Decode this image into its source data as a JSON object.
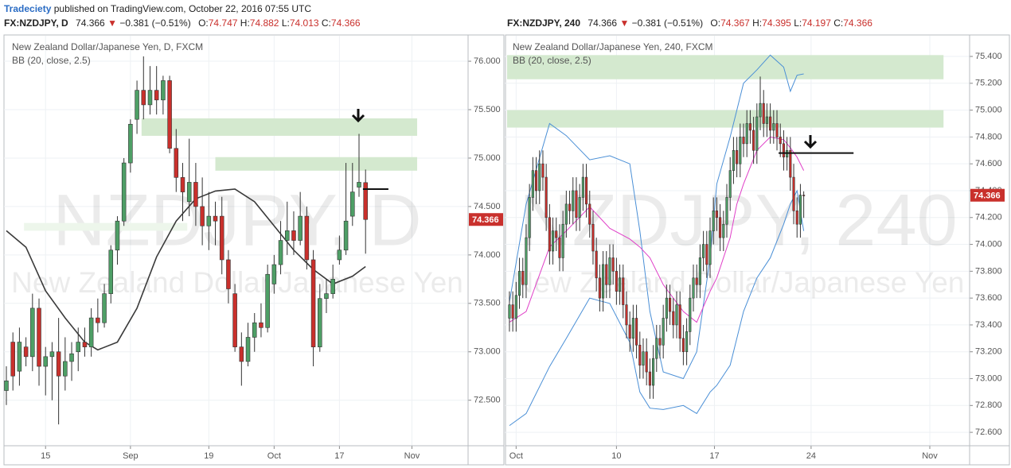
{
  "header": {
    "author": "Tradeciety",
    "published": "published on TradingView.com, October 22, 2016 07:55 UTC"
  },
  "chart_data": [
    {
      "type": "candlestick",
      "legend": {
        "symbol": "FX:NZDJPY, D",
        "last": "74.366",
        "change": "−0.381 (−0.51%)",
        "ohlc": [
          {
            "label": "O:",
            "value": "74.747"
          },
          {
            "label": "H:",
            "value": "74.882"
          },
          {
            "label": "L:",
            "value": "74.013"
          },
          {
            "label": "C:",
            "value": "74.366"
          }
        ]
      },
      "title": "New Zealand Dollar/Japanese Yen, D, FXCM",
      "indicator": "BB (20, close, 2.5)",
      "watermark": "NZDJPY, D",
      "watermark_subtitle": "New Zealand Dollar/Japanese Yen",
      "up_color": "#4e9f66",
      "down_color": "#c9302c",
      "grid": true,
      "xlim": [
        0,
        70.7
      ],
      "xticks": [
        {
          "value": 6,
          "label": "15"
        },
        {
          "value": 19,
          "label": "Sep"
        },
        {
          "value": 31,
          "label": "19"
        },
        {
          "value": 41,
          "label": "Oct"
        },
        {
          "value": 51,
          "label": "17"
        },
        {
          "value": 62.1,
          "label": "Nov"
        }
      ],
      "ylim": [
        72.03,
        76.263
      ],
      "yticks": [
        {
          "value": 72.5,
          "label": "72.500"
        },
        {
          "value": 73,
          "label": "73.000"
        },
        {
          "value": 73.5,
          "label": "73.500"
        },
        {
          "value": 74,
          "label": "74.000"
        },
        {
          "value": 74.5,
          "label": "74.500"
        },
        {
          "value": 75,
          "label": "75.000"
        },
        {
          "value": 75.5,
          "label": "75.500"
        },
        {
          "value": 76,
          "label": "76.000"
        }
      ],
      "open": [
        72.6,
        73.1,
        72.8,
        73.05,
        72.95,
        73.45,
        72.85,
        72.95,
        73.0,
        72.75,
        72.9,
        73.0,
        73.1,
        73.05,
        73.35,
        73.3,
        73.6,
        74.05,
        74.35,
        74.95,
        75.4,
        75.7,
        75.55,
        75.7,
        75.6,
        75.8,
        75.1,
        74.8,
        74.55,
        74.75,
        74.5,
        74.3,
        74.4,
        74.4,
        73.95,
        73.6,
        73.05,
        72.9,
        73.15,
        73.3,
        73.25,
        73.7,
        73.9,
        74.15,
        74.25,
        74.15,
        74.4,
        73.95,
        73.05,
        73.55,
        73.6,
        73.95,
        74.05,
        74.4,
        74.7,
        74.747
      ],
      "high": [
        72.85,
        73.2,
        73.25,
        73.15,
        73.6,
        73.55,
        73.05,
        73.1,
        73.35,
        73.15,
        73.1,
        73.25,
        73.25,
        73.45,
        73.55,
        73.7,
        74.1,
        74.4,
        75.0,
        75.4,
        75.8,
        76.05,
        75.95,
        75.95,
        75.85,
        75.85,
        75.3,
        74.95,
        75.2,
        74.95,
        74.8,
        74.65,
        74.55,
        74.6,
        74.05,
        73.7,
        73.2,
        73.3,
        73.4,
        73.5,
        73.9,
        74.0,
        74.35,
        74.55,
        74.45,
        74.65,
        74.5,
        74.05,
        73.7,
        73.75,
        73.9,
        74.2,
        74.95,
        74.95,
        75.25,
        74.882
      ],
      "low": [
        72.45,
        72.6,
        72.65,
        72.85,
        72.8,
        72.65,
        72.55,
        72.5,
        72.25,
        72.6,
        72.7,
        72.8,
        72.95,
        72.95,
        73.2,
        73.25,
        73.5,
        73.9,
        74.3,
        74.85,
        75.25,
        75.4,
        75.45,
        75.45,
        75.45,
        75.05,
        74.65,
        74.35,
        74.4,
        74.3,
        74.1,
        74.05,
        74.1,
        73.8,
        73.5,
        73.0,
        72.65,
        72.85,
        73.0,
        73.15,
        73.2,
        73.6,
        73.8,
        74.0,
        74.0,
        74.1,
        73.85,
        72.85,
        73.0,
        73.4,
        73.55,
        73.9,
        74.0,
        74.3,
        74.6,
        74.013
      ],
      "close": [
        72.7,
        72.75,
        73.1,
        72.95,
        73.45,
        72.85,
        72.95,
        73.0,
        72.75,
        72.9,
        72.98,
        73.1,
        73.05,
        73.35,
        73.3,
        73.6,
        74.05,
        74.35,
        74.95,
        75.35,
        75.7,
        75.55,
        75.7,
        75.6,
        75.8,
        75.1,
        74.8,
        74.65,
        74.75,
        74.5,
        74.3,
        74.4,
        74.35,
        73.95,
        73.65,
        73.05,
        72.9,
        73.15,
        73.3,
        73.25,
        73.8,
        73.9,
        74.15,
        74.25,
        74.15,
        74.4,
        73.95,
        73.05,
        73.55,
        73.6,
        73.75,
        74.05,
        74.35,
        74.65,
        74.75,
        74.366
      ],
      "lines": [
        {
          "color": "#3a3a3a",
          "x": [
            0,
            3,
            6,
            9,
            12,
            14,
            17,
            20,
            23,
            26,
            29,
            32,
            35,
            38,
            41,
            44,
            47,
            50,
            53,
            55
          ],
          "values": [
            74.25,
            74.08,
            73.63,
            73.35,
            73.1,
            73.02,
            73.1,
            73.45,
            73.98,
            74.35,
            74.58,
            74.66,
            74.68,
            74.55,
            74.3,
            74.05,
            73.85,
            73.7,
            73.78,
            73.88
          ]
        }
      ],
      "zones": [
        {
          "from": 74.25,
          "to": 74.33,
          "start": 2.7,
          "end": 27.7,
          "color": "#edf6eb"
        },
        {
          "from": 75.23,
          "to": 75.41,
          "start": 20.7,
          "end": 62.9,
          "color": "#d4e9cf"
        },
        {
          "from": 74.87,
          "to": 75.01,
          "start": 32,
          "end": 62.9,
          "color": "#d4e9cf"
        }
      ],
      "level": {
        "value": 74.68,
        "start": 54.6,
        "end": 58.5
      }
    },
    {
      "type": "candlestick",
      "legend": {
        "symbol": "FX:NZDJPY, 240",
        "last": "74.366",
        "change": "−0.381 (−0.51%)",
        "ohlc": [
          {
            "label": "O:",
            "value": "74.367"
          },
          {
            "label": "H:",
            "value": "74.395"
          },
          {
            "label": "L:",
            "value": "74.197"
          },
          {
            "label": "C:",
            "value": "74.366"
          }
        ]
      },
      "title": "New Zealand Dollar/Japanese Yen, 240, FXCM",
      "indicator": "BB (20, close, 2.5)",
      "watermark": "NZDJPY, 240",
      "watermark_subtitle": "New Zealand Dollar/Japanese Yen",
      "up_color": "#4e9f66",
      "down_color": "#c9302c",
      "grid": true,
      "xlim": [
        -0.7,
        137.6
      ],
      "xticks": [
        {
          "value": 2,
          "label": "Oct"
        },
        {
          "value": 32,
          "label": "10"
        },
        {
          "value": 61.3,
          "label": "17"
        },
        {
          "value": 90.2,
          "label": "24"
        },
        {
          "value": 125.7,
          "label": "Nov"
        }
      ],
      "ylim": [
        72.5,
        75.554
      ],
      "yticks": [
        {
          "value": 72.6,
          "label": "72.600"
        },
        {
          "value": 72.8,
          "label": "72.800"
        },
        {
          "value": 73,
          "label": "73.000"
        },
        {
          "value": 73.2,
          "label": "73.200"
        },
        {
          "value": 73.4,
          "label": "73.400"
        },
        {
          "value": 73.6,
          "label": "73.600"
        },
        {
          "value": 73.8,
          "label": "73.800"
        },
        {
          "value": 74,
          "label": "74.000"
        },
        {
          "value": 74.2,
          "label": "74.200"
        },
        {
          "value": 74.4,
          "label": "74.400"
        },
        {
          "value": 74.6,
          "label": "74.600"
        },
        {
          "value": 74.8,
          "label": "74.800"
        },
        {
          "value": 75,
          "label": "75.000"
        },
        {
          "value": 75.2,
          "label": "75.200"
        },
        {
          "value": 75.4,
          "label": "75.400"
        }
      ],
      "open": [
        73.45,
        73.55,
        73.45,
        73.62,
        73.8,
        73.7,
        74.05,
        74.35,
        74.55,
        74.4,
        74.6,
        74.5,
        74.2,
        73.95,
        74.1,
        74.05,
        73.9,
        74.15,
        74.3,
        74.25,
        74.4,
        74.2,
        74.35,
        74.5,
        74.3,
        74.15,
        73.95,
        73.75,
        73.6,
        73.85,
        73.7,
        73.9,
        73.8,
        73.65,
        73.75,
        73.55,
        73.4,
        73.3,
        73.45,
        73.25,
        73.1,
        73.2,
        73.05,
        72.95,
        73.15,
        73.3,
        73.25,
        73.45,
        73.6,
        73.5,
        73.4,
        73.55,
        73.3,
        73.2,
        73.35,
        73.6,
        73.75,
        73.7,
        73.9,
        74.0,
        73.85,
        74.1,
        74.25,
        74.2,
        74.05,
        74.15,
        74.35,
        74.55,
        74.7,
        74.6,
        74.8,
        74.75,
        74.9,
        74.85,
        74.7,
        74.95,
        75.05,
        74.9,
        74.95,
        74.85,
        74.9,
        74.8,
        74.75,
        74.65,
        74.7,
        74.5,
        74.25,
        74.15,
        74.367
      ],
      "high": [
        73.65,
        73.65,
        73.72,
        73.9,
        73.9,
        74.15,
        74.45,
        74.65,
        74.65,
        74.7,
        74.7,
        74.6,
        74.3,
        74.2,
        74.2,
        74.15,
        74.25,
        74.4,
        74.4,
        74.5,
        74.5,
        74.45,
        74.6,
        74.6,
        74.4,
        74.25,
        74.05,
        73.85,
        73.95,
        73.95,
        74.0,
        74.0,
        73.9,
        73.85,
        73.85,
        73.65,
        73.5,
        73.55,
        73.55,
        73.35,
        73.3,
        73.3,
        73.15,
        73.25,
        73.4,
        73.4,
        73.55,
        73.7,
        73.7,
        73.6,
        73.65,
        73.65,
        73.4,
        73.45,
        73.7,
        73.85,
        73.85,
        74.0,
        74.1,
        74.1,
        74.2,
        74.35,
        74.35,
        74.3,
        74.25,
        74.45,
        74.65,
        74.8,
        74.8,
        74.9,
        74.9,
        75.0,
        75.0,
        74.95,
        75.05,
        75.25,
        75.15,
        75.05,
        75.05,
        75.0,
        75.0,
        74.9,
        74.85,
        74.8,
        74.8,
        74.6,
        74.35,
        74.45,
        74.395
      ],
      "low": [
        73.35,
        73.35,
        73.35,
        73.52,
        73.6,
        73.6,
        73.95,
        74.25,
        74.3,
        74.3,
        74.4,
        74.1,
        73.85,
        73.85,
        73.95,
        73.8,
        73.8,
        74.05,
        74.15,
        74.15,
        74.1,
        74.1,
        74.25,
        74.2,
        74.05,
        73.85,
        73.65,
        73.5,
        73.5,
        73.6,
        73.6,
        73.7,
        73.55,
        73.55,
        73.45,
        73.3,
        73.2,
        73.2,
        73.15,
        73.0,
        73.0,
        72.95,
        72.85,
        72.85,
        73.05,
        73.15,
        73.15,
        73.35,
        73.4,
        73.3,
        73.3,
        73.2,
        73.1,
        73.1,
        73.25,
        73.5,
        73.6,
        73.6,
        73.8,
        73.75,
        73.75,
        74.0,
        74.1,
        73.95,
        73.95,
        74.05,
        74.25,
        74.45,
        74.5,
        74.5,
        74.65,
        74.65,
        74.75,
        74.6,
        74.6,
        74.85,
        74.8,
        74.8,
        74.75,
        74.75,
        74.7,
        74.65,
        74.55,
        74.55,
        74.4,
        74.15,
        74.05,
        74.05,
        74.197
      ],
      "close": [
        73.55,
        73.45,
        73.62,
        73.8,
        73.7,
        74.05,
        74.35,
        74.55,
        74.4,
        74.6,
        74.5,
        74.2,
        73.95,
        74.1,
        74.05,
        73.9,
        74.15,
        74.3,
        74.25,
        74.4,
        74.2,
        74.35,
        74.5,
        74.3,
        74.15,
        73.95,
        73.75,
        73.6,
        73.85,
        73.7,
        73.9,
        73.8,
        73.65,
        73.75,
        73.55,
        73.4,
        73.3,
        73.45,
        73.25,
        73.1,
        73.2,
        73.05,
        72.95,
        73.15,
        73.3,
        73.25,
        73.45,
        73.6,
        73.5,
        73.4,
        73.55,
        73.3,
        73.2,
        73.35,
        73.6,
        73.75,
        73.7,
        73.9,
        74.0,
        73.85,
        74.1,
        74.25,
        74.2,
        74.05,
        74.15,
        74.35,
        74.55,
        74.7,
        74.6,
        74.8,
        74.75,
        74.9,
        74.85,
        74.7,
        74.95,
        75.05,
        74.9,
        74.95,
        74.85,
        74.9,
        74.8,
        74.75,
        74.65,
        74.7,
        74.5,
        74.25,
        74.15,
        74.367,
        74.366
      ],
      "lines": [
        {
          "color": "#4a8fd6",
          "x": [
            0,
            5,
            12,
            17,
            24,
            30,
            36,
            39,
            42,
            46,
            52,
            56,
            60,
            62,
            66,
            68,
            70,
            74,
            78,
            82,
            84,
            86,
            88
          ],
          "values": [
            73.57,
            74.3,
            74.9,
            74.81,
            74.63,
            74.66,
            74.6,
            74.1,
            73.5,
            73.05,
            73.0,
            73.2,
            73.9,
            74.45,
            74.8,
            75.0,
            75.2,
            75.3,
            75.41,
            75.32,
            75.14,
            75.26,
            75.27
          ]
        },
        {
          "color": "#e040c8",
          "x": [
            0,
            5,
            12,
            17,
            24,
            30,
            36,
            39,
            42,
            46,
            52,
            56,
            60,
            62,
            66,
            68,
            70,
            74,
            78,
            82,
            84,
            86,
            88
          ],
          "values": [
            73.42,
            73.5,
            73.98,
            74.1,
            74.28,
            74.12,
            74.04,
            73.98,
            73.9,
            73.7,
            73.5,
            73.42,
            73.65,
            73.75,
            74.05,
            74.3,
            74.45,
            74.7,
            74.8,
            74.78,
            74.72,
            74.65,
            74.55
          ]
        },
        {
          "color": "#4a8fd6",
          "x": [
            0,
            5,
            12,
            17,
            24,
            30,
            36,
            39,
            42,
            46,
            52,
            56,
            60,
            62,
            66,
            68,
            70,
            74,
            78,
            82,
            84,
            86,
            88
          ],
          "values": [
            72.65,
            72.74,
            73.09,
            73.3,
            73.6,
            73.56,
            73.27,
            72.9,
            72.78,
            72.77,
            72.8,
            72.74,
            72.9,
            72.95,
            73.1,
            73.3,
            73.5,
            73.75,
            73.9,
            74.15,
            74.3,
            74.4,
            74.1
          ]
        }
      ],
      "zones": [
        {
          "from": 75.23,
          "to": 75.41,
          "start": -0.7,
          "end": 129.8,
          "color": "#d4e9cf"
        },
        {
          "from": 74.87,
          "to": 75.0,
          "start": -0.7,
          "end": 129.8,
          "color": "#d4e9cf"
        }
      ],
      "level": {
        "value": 74.68,
        "start": 80.5,
        "end": 102.9
      }
    }
  ]
}
